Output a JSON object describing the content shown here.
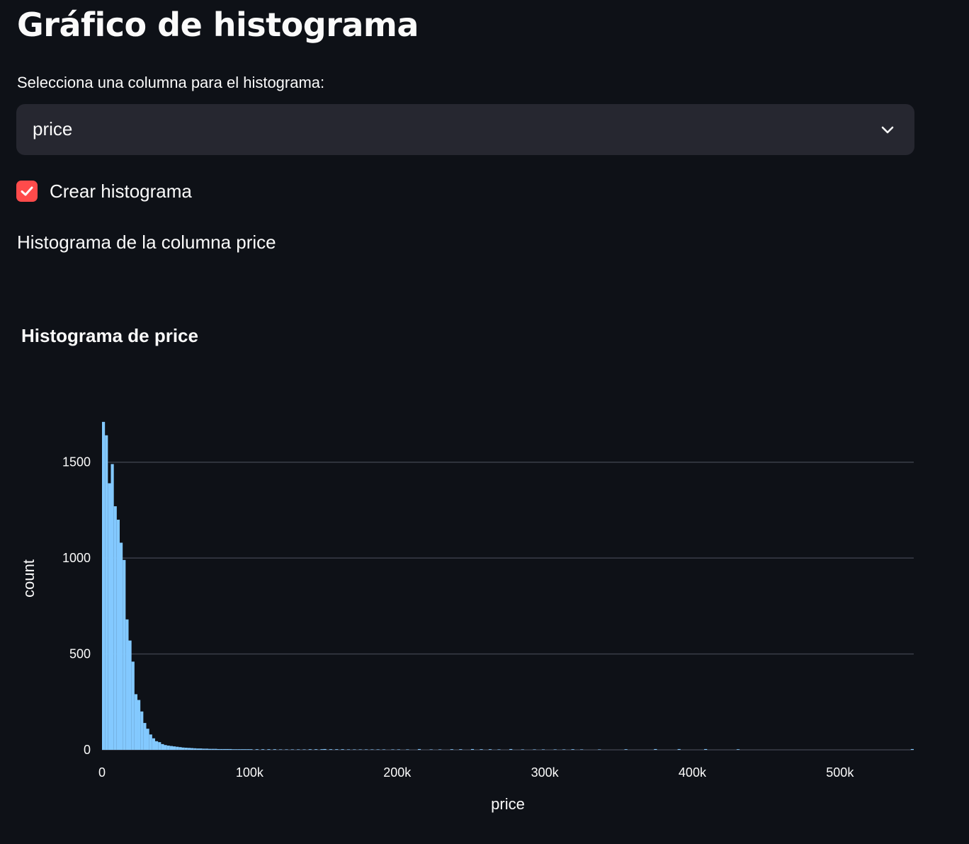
{
  "page": {
    "title": "Gráfico de histograma",
    "select_label": "Selecciona una columna para el histograma:",
    "select_value": "price",
    "checkbox_label": "Crear histograma",
    "checkbox_checked": true,
    "subtitle": "Histograma de la columna price"
  },
  "colors": {
    "background": "#0e1117",
    "select_bg": "#262730",
    "accent": "#ff4b4b",
    "bar": "#83c9ff",
    "grid": "#3a3e48"
  },
  "icons": {
    "select_caret": "chevron-down-icon",
    "checkbox_mark": "check-icon"
  },
  "chart_data": {
    "type": "bar",
    "title": "Histograma de price",
    "xlabel": "price",
    "ylabel": "count",
    "xlim": [
      0,
      550000
    ],
    "ylim": [
      0,
      1750
    ],
    "bin_width": 2000,
    "x_ticks": [
      {
        "value": 0,
        "label": "0"
      },
      {
        "value": 100000,
        "label": "100k"
      },
      {
        "value": 200000,
        "label": "200k"
      },
      {
        "value": 300000,
        "label": "300k"
      },
      {
        "value": 400000,
        "label": "400k"
      },
      {
        "value": 500000,
        "label": "500k"
      }
    ],
    "y_ticks": [
      {
        "value": 0,
        "label": "0"
      },
      {
        "value": 500,
        "label": "500"
      },
      {
        "value": 1000,
        "label": "1000"
      },
      {
        "value": 1500,
        "label": "1500"
      }
    ],
    "grid": true,
    "bin_start": [
      0,
      2000,
      4000,
      6000,
      8000,
      10000,
      12000,
      14000,
      16000,
      18000,
      20000,
      22000,
      24000,
      26000,
      28000,
      30000,
      32000,
      34000,
      36000,
      38000,
      40000,
      42000,
      44000,
      46000,
      48000,
      50000,
      52000,
      54000,
      56000,
      58000,
      60000,
      62000,
      64000,
      66000,
      68000,
      70000,
      72000,
      74000,
      76000,
      78000,
      80000,
      82000,
      84000,
      86000,
      88000,
      90000,
      92000,
      94000,
      96000,
      98000,
      100000,
      104000,
      108000,
      112000,
      116000,
      120000,
      124000,
      128000,
      132000,
      136000,
      140000,
      144000,
      148000,
      150000,
      154000,
      158000,
      162000,
      166000,
      170000,
      174000,
      178000,
      182000,
      186000,
      190000,
      196000,
      200000,
      206000,
      214000,
      222000,
      228000,
      236000,
      242000,
      250000,
      256000,
      262000,
      268000,
      276000,
      284000,
      292000,
      298000,
      306000,
      312000,
      318000,
      324000,
      336000,
      354000,
      374000,
      390000,
      408000,
      430000,
      548000
    ],
    "counts": [
      1710,
      1640,
      1390,
      1490,
      1270,
      1200,
      1080,
      990,
      680,
      570,
      460,
      290,
      260,
      200,
      140,
      110,
      80,
      60,
      45,
      40,
      30,
      25,
      22,
      20,
      18,
      16,
      14,
      12,
      11,
      10,
      9,
      8,
      7,
      7,
      6,
      6,
      5,
      5,
      5,
      4,
      4,
      4,
      4,
      4,
      3,
      3,
      3,
      3,
      3,
      3,
      3,
      3,
      3,
      3,
      3,
      2,
      2,
      2,
      2,
      2,
      3,
      3,
      3,
      4,
      3,
      3,
      3,
      2,
      2,
      2,
      2,
      2,
      2,
      2,
      2,
      2,
      2,
      4,
      2,
      2,
      3,
      3,
      4,
      3,
      3,
      2,
      4,
      2,
      2,
      2,
      2,
      2,
      3,
      2,
      2,
      3,
      4,
      4,
      4,
      3,
      4
    ]
  }
}
